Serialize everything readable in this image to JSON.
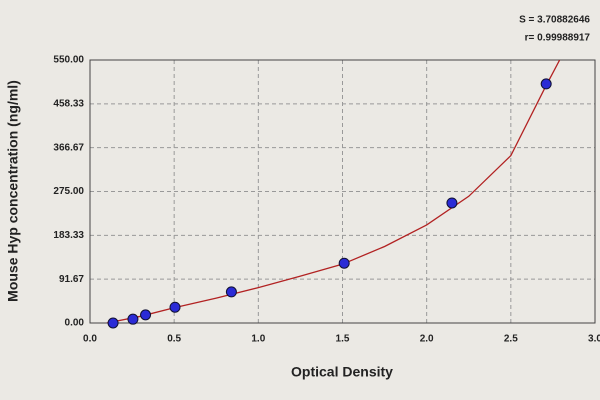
{
  "chart_data": {
    "type": "scatter",
    "annotations": [
      "S = 3.70882646",
      "r= 0.99988917"
    ],
    "xlabel": "Optical Density",
    "ylabel": "Mouse Hyp concentration (ng/ml)",
    "xlim": [
      0,
      3
    ],
    "ylim": [
      0,
      550
    ],
    "xticks": [
      {
        "value": 0,
        "label": "0.0"
      },
      {
        "value": 0.5,
        "label": "0.5"
      },
      {
        "value": 1,
        "label": "1.0"
      },
      {
        "value": 1.5,
        "label": "1.5"
      },
      {
        "value": 2,
        "label": "2.0"
      },
      {
        "value": 2.5,
        "label": "2.5"
      },
      {
        "value": 3,
        "label": "3.0"
      }
    ],
    "yticks": [
      {
        "value": 0,
        "label": "0.00"
      },
      {
        "value": 91.67,
        "label": "91.67"
      },
      {
        "value": 183.33,
        "label": "183.33"
      },
      {
        "value": 275,
        "label": "275.00"
      },
      {
        "value": 366.67,
        "label": "366.67"
      },
      {
        "value": 458.33,
        "label": "458.33"
      },
      {
        "value": 550,
        "label": "550.00"
      }
    ],
    "grid": true,
    "series": [
      {
        "type": "line",
        "color": "#b22222",
        "x": [
          0.1,
          0.3,
          0.5,
          0.75,
          1.0,
          1.25,
          1.5,
          1.75,
          2.0,
          2.25,
          2.5,
          2.7,
          2.79
        ],
        "values": [
          0,
          14,
          32,
          52,
          74,
          98,
          123,
          160,
          205,
          265,
          350,
          490,
          550
        ]
      },
      {
        "type": "scatter",
        "color": "#2b2bd6",
        "x": [
          0.137,
          0.255,
          0.33,
          0.505,
          0.84,
          1.51,
          2.15,
          2.71
        ],
        "values": [
          0,
          8,
          17,
          33,
          65,
          125,
          251,
          500
        ]
      }
    ]
  }
}
